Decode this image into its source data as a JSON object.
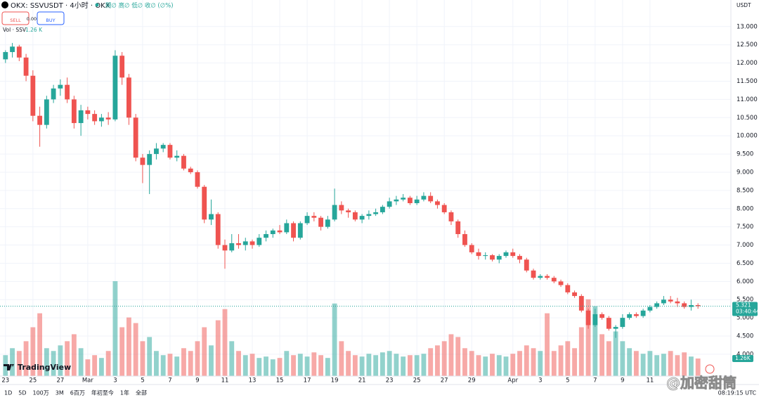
{
  "header": {
    "symbol": "OKX: SSVUSDT · 4小时 · OKX",
    "ohlc": "開∅ 高∅ 低∅ 收∅ (∅%)",
    "sell": "SELL",
    "spread": "0.003",
    "buy": "BUY",
    "vol_label": "Vol · SSV",
    "vol_value": "1.26 K"
  },
  "chart_data": {
    "type": "candlestick",
    "currency": "USDT",
    "ohlc": [
      [
        12.1,
        12.35,
        12.0,
        12.3
      ],
      [
        12.3,
        12.55,
        12.15,
        12.45
      ],
      [
        12.45,
        12.5,
        12.05,
        12.15
      ],
      [
        12.15,
        12.25,
        11.5,
        11.65
      ],
      [
        11.65,
        11.8,
        10.4,
        10.55
      ],
      [
        10.55,
        10.8,
        9.7,
        10.3
      ],
      [
        10.3,
        11.1,
        10.2,
        11.0
      ],
      [
        11.0,
        11.4,
        10.9,
        11.3
      ],
      [
        11.3,
        11.55,
        11.1,
        11.4
      ],
      [
        11.4,
        11.6,
        10.9,
        11.0
      ],
      [
        11.0,
        11.1,
        10.2,
        10.35
      ],
      [
        10.35,
        10.85,
        10.0,
        10.7
      ],
      [
        10.7,
        10.8,
        10.45,
        10.6
      ],
      [
        10.6,
        10.7,
        10.3,
        10.4
      ],
      [
        10.4,
        10.6,
        10.25,
        10.5
      ],
      [
        10.5,
        10.65,
        10.3,
        10.45
      ],
      [
        10.45,
        12.35,
        10.4,
        12.2
      ],
      [
        12.2,
        12.3,
        11.4,
        11.6
      ],
      [
        11.6,
        11.7,
        10.3,
        10.5
      ],
      [
        10.5,
        10.6,
        9.3,
        9.4
      ],
      [
        9.4,
        9.5,
        8.7,
        9.2
      ],
      [
        9.2,
        9.6,
        8.4,
        9.5
      ],
      [
        9.5,
        9.8,
        9.35,
        9.65
      ],
      [
        9.65,
        9.8,
        9.55,
        9.75
      ],
      [
        9.75,
        9.8,
        9.35,
        9.4
      ],
      [
        9.4,
        9.6,
        9.3,
        9.45
      ],
      [
        9.45,
        9.5,
        9.05,
        9.1
      ],
      [
        9.1,
        9.15,
        8.95,
        9.0
      ],
      [
        9.0,
        9.05,
        8.55,
        8.6
      ],
      [
        8.6,
        8.65,
        7.6,
        7.7
      ],
      [
        7.7,
        8.25,
        7.55,
        7.85
      ],
      [
        7.85,
        7.9,
        6.9,
        7.0
      ],
      [
        7.0,
        7.15,
        6.35,
        6.85
      ],
      [
        6.85,
        7.3,
        6.8,
        7.05
      ],
      [
        7.05,
        7.3,
        6.9,
        7.0
      ],
      [
        7.0,
        7.2,
        6.85,
        7.1
      ],
      [
        7.1,
        7.15,
        6.9,
        7.0
      ],
      [
        7.0,
        7.3,
        6.95,
        7.2
      ],
      [
        7.2,
        7.4,
        7.1,
        7.3
      ],
      [
        7.3,
        7.45,
        7.2,
        7.4
      ],
      [
        7.4,
        7.55,
        7.3,
        7.35
      ],
      [
        7.35,
        7.7,
        7.3,
        7.6
      ],
      [
        7.6,
        7.65,
        7.1,
        7.2
      ],
      [
        7.2,
        7.65,
        7.15,
        7.6
      ],
      [
        7.6,
        7.9,
        7.55,
        7.8
      ],
      [
        7.8,
        7.9,
        7.65,
        7.75
      ],
      [
        7.75,
        7.8,
        7.4,
        7.5
      ],
      [
        7.5,
        7.8,
        7.45,
        7.7
      ],
      [
        7.7,
        8.55,
        7.65,
        8.1
      ],
      [
        8.1,
        8.2,
        7.85,
        7.95
      ],
      [
        7.95,
        8.0,
        7.75,
        7.9
      ],
      [
        7.9,
        7.95,
        7.65,
        7.7
      ],
      [
        7.7,
        7.85,
        7.6,
        7.8
      ],
      [
        7.8,
        7.95,
        7.7,
        7.85
      ],
      [
        7.85,
        8.0,
        7.8,
        7.9
      ],
      [
        7.9,
        8.1,
        7.85,
        8.05
      ],
      [
        8.05,
        8.3,
        8.0,
        8.2
      ],
      [
        8.2,
        8.35,
        8.1,
        8.25
      ],
      [
        8.25,
        8.4,
        8.2,
        8.3
      ],
      [
        8.3,
        8.35,
        8.1,
        8.15
      ],
      [
        8.15,
        8.35,
        8.1,
        8.25
      ],
      [
        8.25,
        8.45,
        8.2,
        8.35
      ],
      [
        8.35,
        8.45,
        8.15,
        8.2
      ],
      [
        8.2,
        8.25,
        8.0,
        8.1
      ],
      [
        8.1,
        8.15,
        7.85,
        7.9
      ],
      [
        7.9,
        7.95,
        7.55,
        7.65
      ],
      [
        7.65,
        7.7,
        7.2,
        7.3
      ],
      [
        7.3,
        7.4,
        6.95,
        7.0
      ],
      [
        7.0,
        7.05,
        6.75,
        6.8
      ],
      [
        6.8,
        6.9,
        6.6,
        6.7
      ],
      [
        6.7,
        6.8,
        6.6,
        6.72
      ],
      [
        6.72,
        6.75,
        6.55,
        6.6
      ],
      [
        6.6,
        6.75,
        6.5,
        6.7
      ],
      [
        6.7,
        6.85,
        6.65,
        6.8
      ],
      [
        6.8,
        6.9,
        6.65,
        6.7
      ],
      [
        6.7,
        6.75,
        6.5,
        6.6
      ],
      [
        6.6,
        6.65,
        6.25,
        6.3
      ],
      [
        6.3,
        6.35,
        6.05,
        6.1
      ],
      [
        6.1,
        6.2,
        6.05,
        6.15
      ],
      [
        6.15,
        6.2,
        6.05,
        6.1
      ],
      [
        6.1,
        6.15,
        5.95,
        6.0
      ],
      [
        6.0,
        6.05,
        5.85,
        5.9
      ],
      [
        5.9,
        5.95,
        5.65,
        5.7
      ],
      [
        5.7,
        5.75,
        5.55,
        5.6
      ],
      [
        5.6,
        5.65,
        5.15,
        5.2
      ],
      [
        5.2,
        5.25,
        4.7,
        4.8
      ],
      [
        4.8,
        5.25,
        4.75,
        5.1
      ],
      [
        5.1,
        5.15,
        4.95,
        5.0
      ],
      [
        5.0,
        5.05,
        4.65,
        4.7
      ],
      [
        4.7,
        4.8,
        4.45,
        4.75
      ],
      [
        4.75,
        5.1,
        4.7,
        5.0
      ],
      [
        5.0,
        5.15,
        4.95,
        5.1
      ],
      [
        5.1,
        5.15,
        5.0,
        5.05
      ],
      [
        5.05,
        5.25,
        5.0,
        5.2
      ],
      [
        5.2,
        5.35,
        5.15,
        5.3
      ],
      [
        5.3,
        5.45,
        5.25,
        5.4
      ],
      [
        5.4,
        5.6,
        5.35,
        5.5
      ],
      [
        5.5,
        5.6,
        5.4,
        5.45
      ],
      [
        5.45,
        5.55,
        5.3,
        5.4
      ],
      [
        5.4,
        5.45,
        5.25,
        5.3
      ],
      [
        5.3,
        5.5,
        5.2,
        5.35
      ],
      [
        5.35,
        5.4,
        5.25,
        5.321
      ]
    ],
    "volume": [
      1.5,
      2.0,
      1.8,
      2.5,
      3.5,
      4.5,
      2.0,
      1.8,
      2.2,
      2.5,
      3.0,
      2.0,
      1.2,
      1.5,
      1.3,
      1.8,
      6.8,
      3.5,
      4.2,
      3.8,
      2.5,
      2.8,
      1.8,
      1.5,
      1.6,
      1.4,
      2.0,
      1.8,
      2.5,
      3.5,
      2.2,
      4.0,
      4.8,
      2.5,
      1.8,
      1.5,
      1.6,
      1.3,
      1.4,
      1.2,
      1.3,
      1.8,
      1.5,
      1.6,
      1.4,
      1.7,
      1.5,
      1.3,
      5.2,
      2.5,
      1.8,
      1.5,
      1.4,
      1.6,
      1.5,
      1.7,
      1.8,
      1.6,
      1.4,
      1.5,
      1.5,
      1.6,
      2.0,
      2.2,
      2.5,
      3.0,
      2.8,
      2.0,
      1.8,
      1.5,
      1.4,
      1.6,
      1.5,
      1.4,
      1.6,
      1.8,
      2.2,
      2.0,
      1.8,
      4.5,
      1.8,
      2.2,
      2.5,
      2.0,
      3.5,
      5.5,
      5.0,
      3.0,
      2.5,
      3.2,
      2.5,
      2.0,
      1.8,
      1.6,
      1.8,
      1.5,
      1.6,
      1.8,
      1.5,
      1.7,
      1.4,
      1.26
    ],
    "up_color": "#26a69a",
    "down_color": "#ef5350",
    "xlim": [
      -0.8,
      105.8
    ],
    "xticks": [
      {
        "value": 0,
        "label": "23"
      },
      {
        "value": 4,
        "label": "25"
      },
      {
        "value": 8,
        "label": "27"
      },
      {
        "value": 12,
        "label": "Mar"
      },
      {
        "value": 16,
        "label": "3"
      },
      {
        "value": 20,
        "label": "5"
      },
      {
        "value": 24,
        "label": "7"
      },
      {
        "value": 28,
        "label": "9"
      },
      {
        "value": 32,
        "label": "11"
      },
      {
        "value": 36,
        "label": "13"
      },
      {
        "value": 40,
        "label": "15"
      },
      {
        "value": 44,
        "label": "17"
      },
      {
        "value": 48,
        "label": "19"
      },
      {
        "value": 52,
        "label": "21"
      },
      {
        "value": 56,
        "label": "23"
      },
      {
        "value": 60,
        "label": "25"
      },
      {
        "value": 64,
        "label": "27"
      },
      {
        "value": 68,
        "label": "29"
      },
      {
        "value": 74,
        "label": "Apr"
      },
      {
        "value": 78,
        "label": "3"
      },
      {
        "value": 82,
        "label": "5"
      },
      {
        "value": 86,
        "label": "7"
      },
      {
        "value": 90,
        "label": "9"
      },
      {
        "value": 94,
        "label": "11"
      }
    ],
    "ylim": [
      3.4,
      13.73
    ],
    "yticks": [
      {
        "value": 4.0,
        "label": "4.000"
      },
      {
        "value": 4.5,
        "label": "4.500"
      },
      {
        "value": 5.0,
        "label": "5.000"
      },
      {
        "value": 5.5,
        "label": "5.500"
      },
      {
        "value": 6.0,
        "label": "6.000"
      },
      {
        "value": 6.5,
        "label": "6.500"
      },
      {
        "value": 7.0,
        "label": "7.000"
      },
      {
        "value": 7.5,
        "label": "7.500"
      },
      {
        "value": 8.0,
        "label": "8.000"
      },
      {
        "value": 8.5,
        "label": "8.500"
      },
      {
        "value": 9.0,
        "label": "9.000"
      },
      {
        "value": 9.5,
        "label": "9.500"
      },
      {
        "value": 10.0,
        "label": "10.000"
      },
      {
        "value": 10.5,
        "label": "10.500"
      },
      {
        "value": 11.0,
        "label": "11.000"
      },
      {
        "value": 11.5,
        "label": "11.500"
      },
      {
        "value": 12.0,
        "label": "12.000"
      },
      {
        "value": 12.5,
        "label": "12.500"
      },
      {
        "value": 13.0,
        "label": "13.000"
      }
    ],
    "vlim": [
      0,
      7
    ],
    "grid": true,
    "last_price": 5.321,
    "countdown": "03:40:44",
    "last_volume": {
      "value": 1.26,
      "label": "1.26K"
    }
  },
  "toolbar": {
    "ranges": [
      "1D",
      "5D",
      "100万",
      "3M",
      "6百万",
      "年初至今",
      "1年",
      "全部"
    ],
    "time": "08:19:15 UTC"
  },
  "logo": "TradingView",
  "watermark": "@加密甜筒"
}
